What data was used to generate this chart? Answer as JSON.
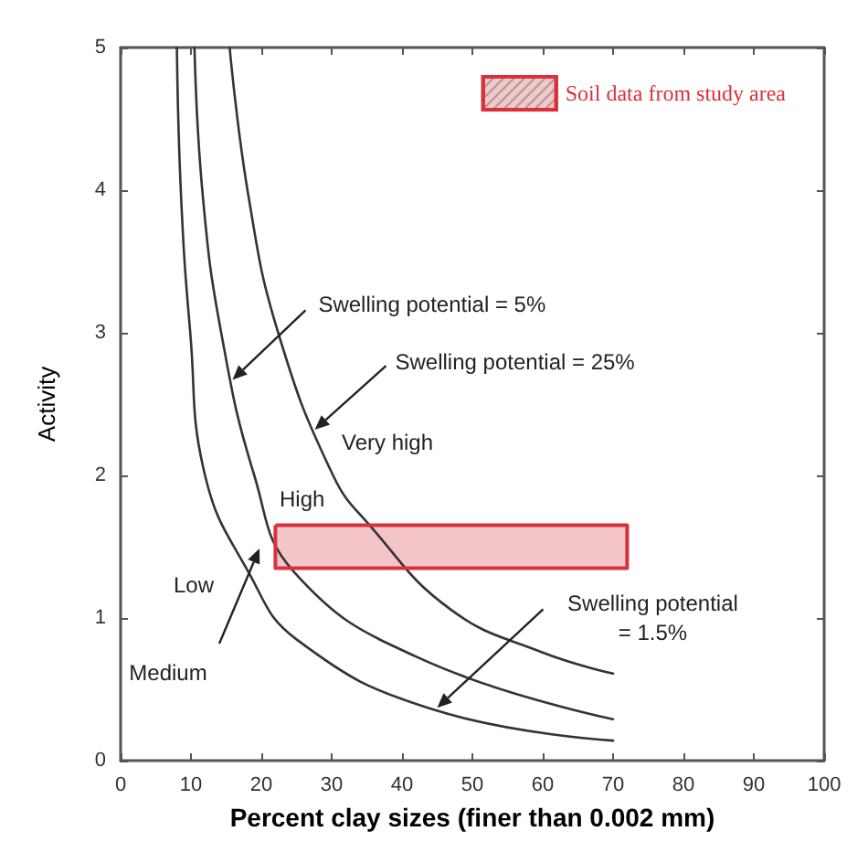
{
  "chart_data": {
    "type": "line",
    "xlabel": "Percent clay sizes (finer than 0.002 mm)",
    "ylabel": "Activity",
    "xlim": [
      0,
      100
    ],
    "xticks": [
      0,
      10,
      20,
      30,
      40,
      50,
      60,
      70,
      80,
      90,
      100
    ],
    "ylim": [
      0,
      5
    ],
    "yticks": [
      0,
      1,
      2,
      3,
      4,
      5
    ],
    "grid": false,
    "legend": "top right",
    "marker": "none",
    "line_style": "solid",
    "series": [
      {
        "color": "#333333",
        "x": [
          8,
          8.6,
          9.9,
          12,
          18.2,
          25,
          44.3,
          70
        ],
        "values": [
          5,
          3.95,
          3,
          2,
          1.32,
          0.85,
          0.36,
          0.14
        ]
      },
      {
        "color": "#333333",
        "x": [
          10.5,
          11.7,
          14.3,
          19,
          24.7,
          42.4,
          70
        ],
        "values": [
          5,
          3.95,
          3,
          2,
          1.32,
          0.72,
          0.29
        ]
      },
      {
        "color": "#333333",
        "x": [
          15.5,
          18.2,
          22.4,
          30.2,
          35.4,
          46.9,
          59.9,
          70
        ],
        "values": [
          5,
          3.95,
          3,
          2,
          1.65,
          1.06,
          0.76,
          0.61
        ]
      },
      {
        "type": "area",
        "name": "Soil data from study area",
        "color": "#d9303a",
        "x": [
          22,
          72,
          72,
          22,
          22
        ],
        "values": [
          1.65,
          1.65,
          1.35,
          1.35,
          1.65
        ]
      }
    ],
    "annotations": [
      {
        "text": "Swelling potential = 5%",
        "x": 15.9,
        "y": 2.67
      },
      {
        "text": "Swelling potential = 25%",
        "x": 27.6,
        "y": 2.32
      },
      {
        "text": "Swelling potential\n= 1.5%",
        "x": 45,
        "y": 0.37
      },
      "Very high",
      "High",
      "Low",
      "Medium"
    ]
  }
}
